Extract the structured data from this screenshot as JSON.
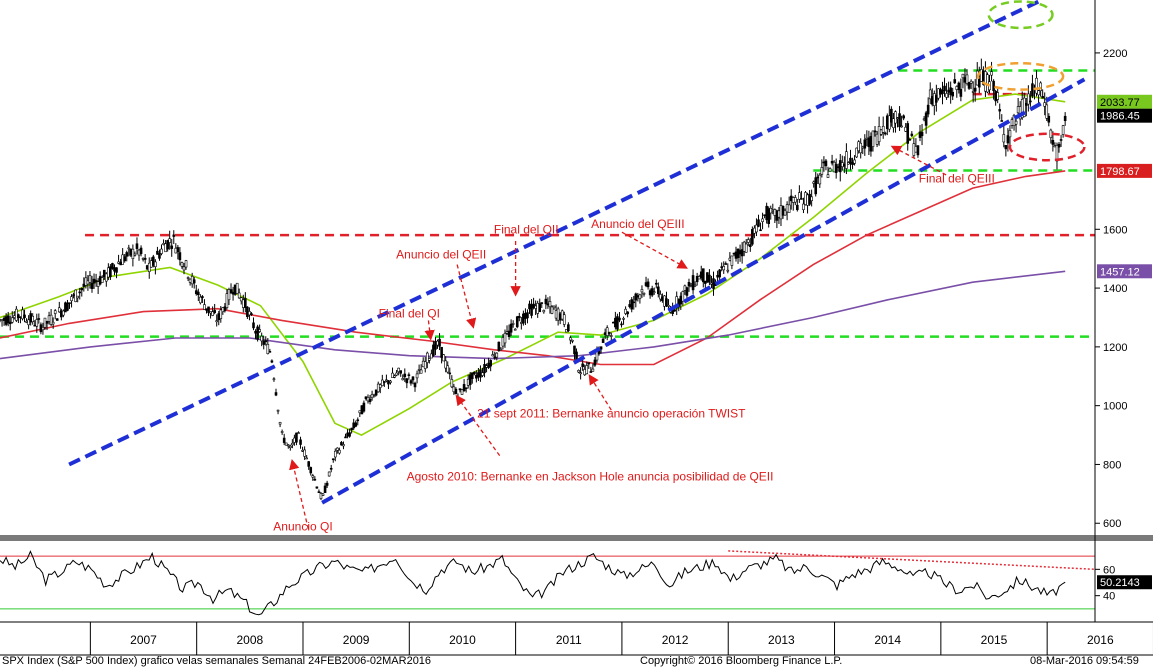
{
  "footer": {
    "left": "SPX Index (S&P 500 Index) grafico velas semanales  Semanal 24FEB2006-02MAR2016",
    "center": "Copyright© 2016 Bloomberg Finance L.P.",
    "right": "08-Mar-2016 09:54:59"
  },
  "colors": {
    "price": "#000000",
    "channel": "#1f2fd6",
    "ma_green": "#8fd400",
    "ma_red": "#e0303a",
    "ma_purple": "#7a4fa8",
    "support_green": "#22dd22",
    "resistance_red": "#e0202a",
    "annotation": "#e01a1a",
    "rsi": "#000000",
    "rsi_upper": "#e0303a",
    "rsi_lower": "#33cc33"
  },
  "chart_data": [
    {
      "type": "candlestick",
      "title": "",
      "x_ticks": [
        "2007",
        "2008",
        "2009",
        "2010",
        "2011",
        "2012",
        "2013",
        "2014",
        "2015",
        "2016"
      ],
      "y_ticks": [
        600,
        800,
        1000,
        1200,
        1400,
        1600,
        2200
      ],
      "ylim": [
        560,
        2380
      ],
      "xlim": [
        2006.15,
        2016.45
      ],
      "grid": false,
      "price_points": [
        [
          2006.15,
          1290
        ],
        [
          2006.35,
          1310
        ],
        [
          2006.55,
          1270
        ],
        [
          2006.75,
          1330
        ],
        [
          2006.95,
          1410
        ],
        [
          2007.15,
          1440
        ],
        [
          2007.3,
          1500
        ],
        [
          2007.45,
          1530
        ],
        [
          2007.55,
          1460
        ],
        [
          2007.7,
          1550
        ],
        [
          2007.78,
          1565
        ],
        [
          2007.9,
          1470
        ],
        [
          2008.0,
          1390
        ],
        [
          2008.1,
          1330
        ],
        [
          2008.2,
          1290
        ],
        [
          2008.35,
          1410
        ],
        [
          2008.45,
          1350
        ],
        [
          2008.55,
          1260
        ],
        [
          2008.7,
          1180
        ],
        [
          2008.8,
          900
        ],
        [
          2008.88,
          850
        ],
        [
          2008.95,
          900
        ],
        [
          2009.1,
          760
        ],
        [
          2009.18,
          680
        ],
        [
          2009.3,
          830
        ],
        [
          2009.5,
          940
        ],
        [
          2009.6,
          1020
        ],
        [
          2009.75,
          1070
        ],
        [
          2009.9,
          1110
        ],
        [
          2010.05,
          1080
        ],
        [
          2010.2,
          1180
        ],
        [
          2010.28,
          1210
        ],
        [
          2010.38,
          1100
        ],
        [
          2010.45,
          1030
        ],
        [
          2010.58,
          1090
        ],
        [
          2010.7,
          1120
        ],
        [
          2010.85,
          1200
        ],
        [
          2011.0,
          1280
        ],
        [
          2011.15,
          1330
        ],
        [
          2011.3,
          1340
        ],
        [
          2011.45,
          1300
        ],
        [
          2011.55,
          1200
        ],
        [
          2011.6,
          1120
        ],
        [
          2011.72,
          1130
        ],
        [
          2011.85,
          1240
        ],
        [
          2012.0,
          1300
        ],
        [
          2012.2,
          1400
        ],
        [
          2012.35,
          1390
        ],
        [
          2012.45,
          1320
        ],
        [
          2012.6,
          1390
        ],
        [
          2012.75,
          1450
        ],
        [
          2012.85,
          1410
        ],
        [
          2013.0,
          1480
        ],
        [
          2013.2,
          1560
        ],
        [
          2013.35,
          1650
        ],
        [
          2013.45,
          1640
        ],
        [
          2013.6,
          1690
        ],
        [
          2013.75,
          1700
        ],
        [
          2013.9,
          1800
        ],
        [
          2014.1,
          1830
        ],
        [
          2014.2,
          1860
        ],
        [
          2014.35,
          1900
        ],
        [
          2014.5,
          1970
        ],
        [
          2014.6,
          1990
        ],
        [
          2014.78,
          1860
        ],
        [
          2014.9,
          2050
        ],
        [
          2015.05,
          2060
        ],
        [
          2015.2,
          2090
        ],
        [
          2015.35,
          2110
        ],
        [
          2015.5,
          2100
        ],
        [
          2015.6,
          1900
        ],
        [
          2015.75,
          2000
        ],
        [
          2015.9,
          2080
        ],
        [
          2015.98,
          2040
        ],
        [
          2016.05,
          1900
        ],
        [
          2016.1,
          1850
        ],
        [
          2016.15,
          1920
        ],
        [
          2016.17,
          1986.45
        ]
      ],
      "moving_averages": [
        {
          "points": [
            [
              2006.15,
              1300
            ],
            [
              2006.7,
              1370
            ],
            [
              2007.2,
              1440
            ],
            [
              2007.75,
              1470
            ],
            [
              2008.2,
              1410
            ],
            [
              2008.6,
              1340
            ],
            [
              2009.0,
              1150
            ],
            [
              2009.3,
              940
            ],
            [
              2009.55,
              900
            ],
            [
              2010.0,
              990
            ],
            [
              2010.4,
              1080
            ],
            [
              2010.9,
              1160
            ],
            [
              2011.4,
              1250
            ],
            [
              2011.8,
              1240
            ],
            [
              2012.3,
              1290
            ],
            [
              2012.8,
              1380
            ],
            [
              2013.3,
              1500
            ],
            [
              2013.8,
              1640
            ],
            [
              2014.3,
              1790
            ],
            [
              2014.8,
              1930
            ],
            [
              2015.3,
              2040
            ],
            [
              2015.7,
              2060
            ],
            [
              2016.17,
              2033.77
            ]
          ]
        },
        {
          "points": [
            [
              2006.15,
              1230
            ],
            [
              2006.8,
              1280
            ],
            [
              2007.5,
              1320
            ],
            [
              2008.2,
              1330
            ],
            [
              2008.8,
              1290
            ],
            [
              2009.5,
              1250
            ],
            [
              2010.2,
              1220
            ],
            [
              2010.8,
              1190
            ],
            [
              2011.3,
              1170
            ],
            [
              2011.8,
              1140
            ],
            [
              2012.3,
              1140
            ],
            [
              2012.8,
              1230
            ],
            [
              2013.3,
              1360
            ],
            [
              2013.8,
              1480
            ],
            [
              2014.3,
              1580
            ],
            [
              2014.8,
              1660
            ],
            [
              2015.3,
              1740
            ],
            [
              2015.8,
              1780
            ],
            [
              2016.17,
              1798.67
            ]
          ]
        },
        {
          "points": [
            [
              2006.15,
              1160
            ],
            [
              2007.0,
              1200
            ],
            [
              2007.8,
              1230
            ],
            [
              2008.5,
              1230
            ],
            [
              2009.3,
              1190
            ],
            [
              2010.0,
              1170
            ],
            [
              2010.8,
              1160
            ],
            [
              2011.6,
              1170
            ],
            [
              2012.3,
              1200
            ],
            [
              2013.0,
              1240
            ],
            [
              2013.8,
              1300
            ],
            [
              2014.5,
              1360
            ],
            [
              2015.3,
              1420
            ],
            [
              2016.17,
              1457.12
            ]
          ]
        }
      ],
      "channel_lines": [
        {
          "points": [
            [
              2006.8,
              800
            ],
            [
              2015.95,
              2380
            ]
          ]
        },
        {
          "points": [
            [
              2009.18,
              670
            ],
            [
              2016.35,
              2110
            ]
          ]
        }
      ],
      "horizontal_lines": [
        {
          "value": 1580,
          "from": 2006.95,
          "to": 2016.45
        },
        {
          "value": 2140,
          "from": 2014.6,
          "to": 2016.45
        },
        {
          "value": 1235,
          "from": 2006.15,
          "to": 2016.45
        },
        {
          "value": 1800,
          "from": 2013.8,
          "to": 2016.45
        }
      ],
      "value_badges": [
        {
          "label": "2033.77",
          "value": 2033.77,
          "bg": "#78c820",
          "fg": "#000000"
        },
        {
          "label": "1986.45",
          "value": 1986.45,
          "bg": "#000000",
          "fg": "#ffffff"
        },
        {
          "label": "1798.67",
          "value": 1798.67,
          "bg": "#d81e1e",
          "fg": "#ffffff"
        },
        {
          "label": "1457.12",
          "value": 1457.12,
          "bg": "#7a4fa8",
          "fg": "#ffffff"
        }
      ],
      "annotations": [
        {
          "text": "Anuncio QI",
          "x": 2009.0,
          "y": 575,
          "arrow_to": [
            2008.9,
            810
          ],
          "arrow_from": [
            2009.05,
            580
          ]
        },
        {
          "text": "Final del QI",
          "x": 2010.0,
          "y": 1300,
          "arrow_to": [
            2010.2,
            1230
          ],
          "arrow_from": [
            2010.18,
            1290
          ]
        },
        {
          "text": "Anuncio del QEII",
          "x": 2010.3,
          "y": 1500,
          "arrow_to": [
            2010.6,
            1270
          ],
          "arrow_from": [
            2010.45,
            1480
          ]
        },
        {
          "text": "Final del QII",
          "x": 2011.1,
          "y": 1585,
          "arrow_to": [
            2011.0,
            1380
          ],
          "arrow_from": [
            2011.0,
            1560
          ]
        },
        {
          "text": "Anuncio del QEIII",
          "x": 2012.15,
          "y": 1605,
          "arrow_to": [
            2012.6,
            1470
          ],
          "arrow_from": [
            2012.0,
            1590
          ]
        },
        {
          "text": "21 sept 2011: Bernanke anuncio operación TWIST",
          "x": 2011.9,
          "y": 960,
          "arrow_to": [
            2011.7,
            1100
          ],
          "arrow_from": [
            2011.9,
            985
          ]
        },
        {
          "text": "Agosto 2010: Bernanke en Jackson Hole anuncia posibilidad de QEII",
          "x": 2011.7,
          "y": 745,
          "arrow_to": [
            2010.45,
            1030
          ],
          "arrow_from": [
            2010.85,
            830
          ]
        },
        {
          "text": "Final del QEIII",
          "x": 2015.15,
          "y": 1760,
          "arrow_to": [
            2014.55,
            1880
          ],
          "arrow_from": [
            2015.05,
            1785
          ]
        }
      ],
      "ellipses": [
        {
          "x": 2015.75,
          "y": 2330,
          "rx": 0.3,
          "ry": 45,
          "color": "#77cc22"
        },
        {
          "x": 2015.75,
          "y": 2120,
          "rx": 0.4,
          "ry": 45,
          "color": "#f0a030"
        },
        {
          "x": 2016.0,
          "y": 1880,
          "rx": 0.35,
          "ry": 45,
          "color": "#e0202a"
        }
      ]
    },
    {
      "type": "line",
      "title": "",
      "y_ticks": [
        40,
        60
      ],
      "ylim": [
        20,
        80
      ],
      "upper_band": 70,
      "lower_band": 30,
      "last_value": "50.2143",
      "values": [
        68,
        62,
        70,
        52,
        58,
        66,
        60,
        48,
        55,
        62,
        70,
        58,
        45,
        50,
        38,
        44,
        36,
        24,
        35,
        48,
        55,
        62,
        66,
        60,
        58,
        64,
        70,
        52,
        45,
        60,
        66,
        58,
        62,
        68,
        50,
        38,
        45,
        58,
        64,
        70,
        62,
        55,
        60,
        65,
        48,
        58,
        62,
        66,
        52,
        60,
        64,
        68,
        58,
        62,
        55,
        48,
        56,
        60,
        66,
        62,
        54,
        58,
        50,
        44,
        48,
        38,
        44,
        52,
        46,
        40,
        50
      ]
    }
  ]
}
